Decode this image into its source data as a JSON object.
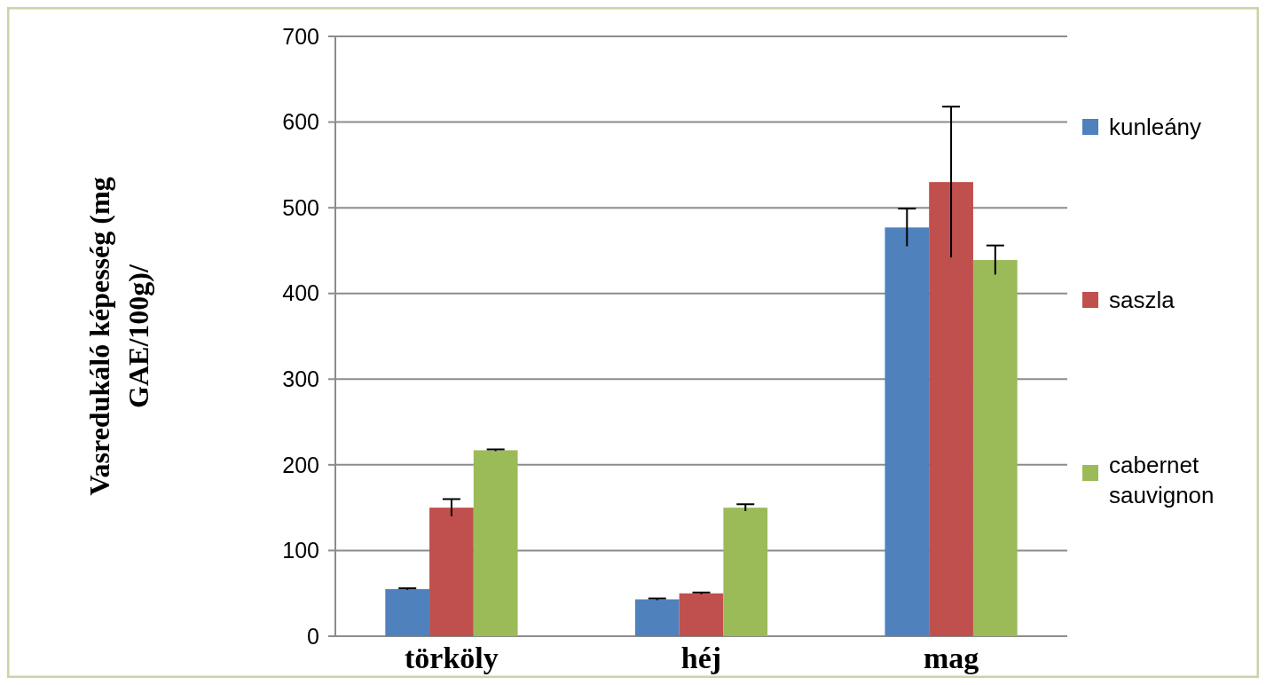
{
  "chart_data": {
    "type": "bar",
    "ylabel": "Vasredukáló képesség (mg GAE/100g)/",
    "categories": [
      "törköly",
      "héj",
      "mag"
    ],
    "series": [
      {
        "name": "kunleány",
        "color": "#4f81bd",
        "values": [
          55,
          43,
          477
        ],
        "errors": [
          1,
          1,
          22
        ]
      },
      {
        "name": "saszla",
        "color": "#c0504d",
        "values": [
          150,
          50,
          530
        ],
        "errors": [
          10,
          1,
          88
        ]
      },
      {
        "name": "cabernet sauvignon",
        "color": "#9bbb59",
        "values": [
          217,
          150,
          439
        ],
        "errors": [
          1,
          4,
          17
        ]
      }
    ],
    "ylim": [
      0,
      700
    ],
    "yticks": [
      0,
      100,
      200,
      300,
      400,
      500,
      600,
      700
    ],
    "grid": "y",
    "legend": "right"
  }
}
